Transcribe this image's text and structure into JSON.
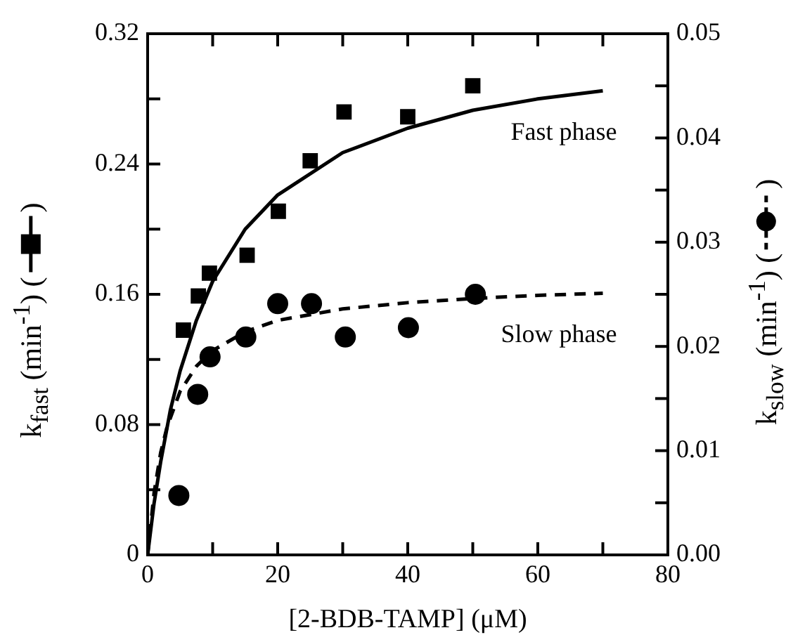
{
  "chart_data": {
    "type": "scatter",
    "xlabel": "[2-BDB-TAMP] (μM)",
    "ylabel": "k$_{fast}$ (min$^{-1}$) ( )",
    "y2label": "k$_{slow}$ (min$^{-1}$) ( )",
    "xlim": [
      0,
      80
    ],
    "xticks": [
      0,
      {
        "value": 10,
        "label": null
      },
      20,
      {
        "value": 30,
        "label": null
      },
      40,
      {
        "value": 50,
        "label": null
      },
      60,
      {
        "value": 70,
        "label": null
      },
      80
    ],
    "ylim": [
      0,
      0.32
    ],
    "yticks": [
      0,
      {
        "value": 0.04,
        "label": null
      },
      0.08,
      {
        "value": 0.12,
        "label": null
      },
      0.16,
      {
        "value": 0.2,
        "label": null
      },
      0.24,
      {
        "value": 0.28,
        "label": null
      },
      0.32
    ],
    "y2lim": [
      0,
      0.05
    ],
    "y2ticks": [
      {
        "value": 0,
        "label": "0.00"
      },
      {
        "value": 0.005,
        "label": null
      },
      0.01,
      {
        "value": 0.015,
        "label": null
      },
      0.02,
      {
        "value": 0.025,
        "label": null
      },
      0.03,
      {
        "value": 0.035,
        "label": null
      },
      0.04,
      {
        "value": 0.045,
        "label": null
      },
      0.05
    ],
    "grid": false,
    "series": [
      {
        "type": "scatter",
        "marker": "square",
        "color": "#000000",
        "x": [
          5.5,
          7.8,
          9.5,
          15.3,
          20.1,
          25,
          30.2,
          40,
          50
        ],
        "values": [
          0.138,
          0.159,
          0.173,
          0.184,
          0.211,
          0.242,
          0.272,
          0.269,
          0.288
        ]
      },
      {
        "type": "line",
        "name": "Fast phase",
        "line_style": "solid",
        "marker": "none",
        "color": "#000000",
        "x": [
          0,
          1,
          2,
          3.5,
          5,
          7.5,
          10,
          15,
          20,
          30,
          40,
          50,
          60,
          70
        ],
        "values": [
          0,
          0.032,
          0.057,
          0.089,
          0.113,
          0.144,
          0.168,
          0.2,
          0.221,
          0.247,
          0.262,
          0.273,
          0.28,
          0.285
        ]
      },
      {
        "type": "scatter",
        "marker": "circle",
        "axis": "y2",
        "color": "#000000",
        "x": [
          4.8,
          7.7,
          9.6,
          15.1,
          20,
          25.2,
          30.4,
          40.1,
          50.4
        ],
        "values": [
          0.0057,
          0.0154,
          0.019,
          0.0209,
          0.0241,
          0.0241,
          0.0209,
          0.0218,
          0.025
        ]
      },
      {
        "type": "line",
        "name": "Slow phase",
        "line_style": "dashed",
        "marker": "none",
        "axis": "y2",
        "color": "#000000",
        "x": [
          0,
          1,
          2,
          3,
          5,
          7.5,
          10,
          15,
          20,
          30,
          40,
          50,
          60,
          70
        ],
        "values": [
          0,
          0.006,
          0.0098,
          0.0123,
          0.0157,
          0.0181,
          0.0196,
          0.0214,
          0.0225,
          0.0236,
          0.0242,
          0.0246,
          0.0249,
          0.0251
        ]
      }
    ]
  }
}
